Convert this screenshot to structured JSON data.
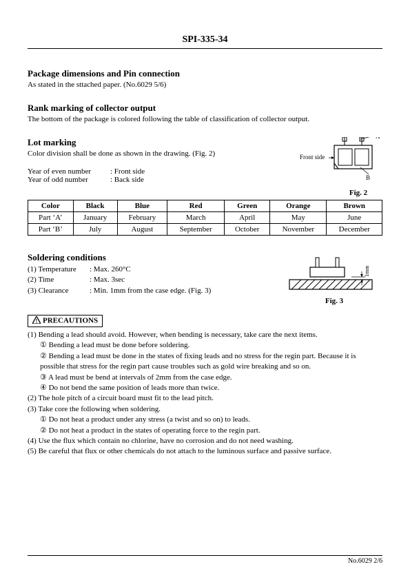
{
  "header": {
    "title": "SPI-335-34"
  },
  "sec1": {
    "title": "Package dimensions and Pin connection",
    "sub": "As stated in the sttached paper. (No.6029 5/6)"
  },
  "sec2": {
    "title": "Rank marking of collector output",
    "sub": "The bottom of the package is colored following the table of classification of collector output."
  },
  "lot": {
    "title": "Lot marking",
    "sub": "Color division shall be done as shown in the drawing. (Fig. 2)",
    "yr_even_lbl": "Year of even number",
    "yr_even_val": ": Front side",
    "yr_odd_lbl": "Year of odd number",
    "yr_odd_val": ": Back side",
    "fig2": {
      "front_side": "Front side",
      "a": "A",
      "b": "B",
      "caption": "Fig. 2"
    }
  },
  "month_table": {
    "headers": [
      "Color",
      "Black",
      "Blue",
      "Red",
      "Green",
      "Orange",
      "Brown"
    ],
    "rows": [
      [
        "Part ‘A’",
        "January",
        "February",
        "March",
        "April",
        "May",
        "June"
      ],
      [
        "Part ‘B’",
        "July",
        "August",
        "September",
        "October",
        "November",
        "December"
      ]
    ]
  },
  "solder": {
    "title": "Soldering conditions",
    "items": [
      {
        "num": "(1) Temperature",
        "val": ": Max. 260°C"
      },
      {
        "num": "(2) Time",
        "val": ": Max. 3sec"
      },
      {
        "num": "(3) Clearance",
        "val": ": Min. 1mm from the case edge. (Fig. 3)"
      }
    ],
    "fig3": {
      "dim": "1mm",
      "caption": "Fig. 3"
    }
  },
  "precautions": {
    "label": "PRECAUTIONS",
    "lines": [
      "(1) Bending a lead should avoid. However, when bending is necessary, take care the next items.",
      "① Bending a lead must be done before soldering.",
      "② Bending a lead must be done in the states of fixing leads and no stress for the regin part. Because it is possible that stress for the regin part cause troubles such as gold wire breaking and so on.",
      "③ A lead must be bend at intervals of 2mm from the case edge.",
      "④ Do not bend the same position of leads more than twice.",
      "(2) The hole pitch of a circuit board must fit to the lead pitch.",
      "(3) Take core the following when soldering.",
      "① Do not heat a product under any stress (a twist and so on) to leads.",
      "② Do not heat a product in the states of operating force to the regin part.",
      "(4) Use the flux which contain no chlorine, have no corrosion and do not need washing.",
      "(5) Be careful that flux or other chemicals do not attach to the luminous surface and passive surface."
    ],
    "indents": [
      0,
      1,
      1,
      1,
      1,
      0,
      0,
      1,
      1,
      0,
      0
    ]
  },
  "footer": {
    "pageno": "No.6029 2/6"
  },
  "colors": {
    "text": "#000000",
    "bg": "#ffffff",
    "hatch": "#000000"
  }
}
